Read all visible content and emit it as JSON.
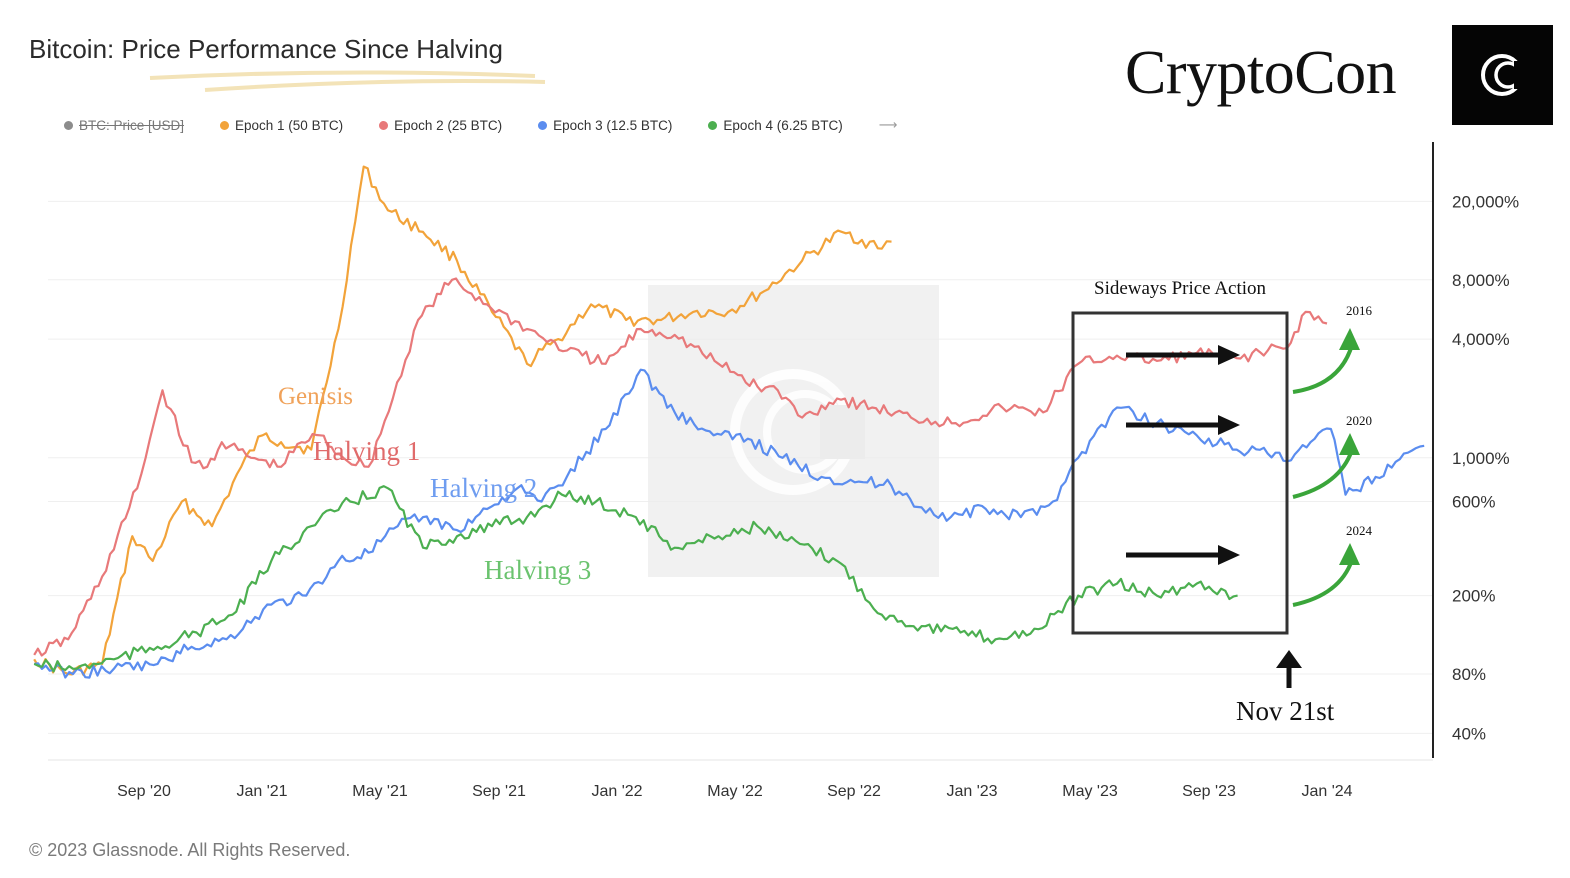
{
  "header": {
    "title": "Bitcoin: Price Performance Since Halving",
    "brand": "CryptoCon"
  },
  "footer": {
    "copyright": "© 2023 Glassnode. All Rights Reserved."
  },
  "legend": {
    "items": [
      {
        "label": "BTC: Price [USD]",
        "color": "#8c8c8c",
        "disabled": true
      },
      {
        "label": "Epoch 1 (50 BTC)",
        "color": "#f2a33a",
        "disabled": false
      },
      {
        "label": "Epoch 2 (25 BTC)",
        "color": "#e8797a",
        "disabled": false
      },
      {
        "label": "Epoch 3 (12.5 BTC)",
        "color": "#5b8def",
        "disabled": false
      },
      {
        "label": "Epoch 4 (6.25 BTC)",
        "color": "#4caf50",
        "disabled": false
      }
    ]
  },
  "chart_data": {
    "type": "line",
    "y_scale": "log",
    "ylim": [
      30,
      40000
    ],
    "x_ticks": [
      "Sep '20",
      "Jan '21",
      "May '21",
      "Sep '21",
      "Jan '22",
      "May '22",
      "Sep '22",
      "Jan '23",
      "May '23",
      "Sep '23",
      "Jan '24"
    ],
    "y_ticks": [
      {
        "label": "20,000%",
        "value": 20000
      },
      {
        "label": "8,000%",
        "value": 8000
      },
      {
        "label": "4,000%",
        "value": 4000
      },
      {
        "label": "1,000%",
        "value": 1000
      },
      {
        "label": "600%",
        "value": 600
      },
      {
        "label": "200%",
        "value": 200
      },
      {
        "label": "80%",
        "value": 80
      },
      {
        "label": "40%",
        "value": 40
      }
    ],
    "series": [
      {
        "name": "Epoch 1 (50 BTC)",
        "color": "#f2a33a",
        "x": [
          "2020-05-11",
          "2020-06-15",
          "2020-07-20",
          "2020-08-20",
          "2020-09-10",
          "2020-10-10",
          "2020-11-10",
          "2020-12-10",
          "2021-01-01",
          "2021-01-20",
          "2021-02-20",
          "2021-03-20",
          "2021-04-15",
          "2021-05-10",
          "2021-06-15",
          "2021-07-20",
          "2021-08-25",
          "2021-09-30",
          "2021-11-01",
          "2021-12-05",
          "2022-01-10",
          "2022-02-15",
          "2022-03-20",
          "2022-04-25",
          "2022-06-01",
          "2022-07-10",
          "2022-08-20",
          "2022-09-30",
          "2022-10-10"
        ],
        "y": [
          95,
          80,
          90,
          400,
          300,
          600,
          450,
          900,
          1300,
          1200,
          1100,
          4500,
          30000,
          18000,
          14000,
          10000,
          5500,
          3000,
          4000,
          6000,
          5000,
          5000,
          5500,
          5500,
          7000,
          10000,
          14000,
          11500,
          12500
        ]
      },
      {
        "name": "Epoch 2 (25 BTC)",
        "color": "#e8797a",
        "x": [
          "2020-05-11",
          "2020-06-15",
          "2020-07-20",
          "2020-08-25",
          "2020-09-20",
          "2020-10-20",
          "2020-11-05",
          "2020-11-20",
          "2020-12-20",
          "2021-01-20",
          "2021-02-10",
          "2021-03-01",
          "2021-03-25",
          "2021-04-20",
          "2021-05-15",
          "2021-06-10",
          "2021-07-15",
          "2021-08-20",
          "2021-09-30",
          "2021-11-10",
          "2021-12-20",
          "2022-01-25",
          "2022-03-01",
          "2022-04-15",
          "2022-05-25",
          "2022-06-15",
          "2022-07-10",
          "2022-08-15",
          "2022-09-20",
          "2022-10-30",
          "2022-12-15",
          "2023-02-01",
          "2023-03-15",
          "2023-04-20",
          "2023-05-30",
          "2023-07-10",
          "2023-08-20",
          "2023-09-30",
          "2023-11-01",
          "2023-11-21",
          "2023-12-10",
          "2024-01-01"
        ],
        "y": [
          100,
          120,
          250,
          700,
          2200,
          950,
          900,
          1200,
          1000,
          900,
          1200,
          1300,
          1000,
          900,
          2000,
          5000,
          8000,
          6000,
          4500,
          3500,
          3000,
          4500,
          4200,
          3000,
          2300,
          2200,
          1600,
          2000,
          1800,
          1600,
          1500,
          1800,
          1700,
          3000,
          3300,
          3100,
          3400,
          3200,
          3500,
          3600,
          5500,
          4800
        ]
      },
      {
        "name": "Epoch 3 (12.5 BTC)",
        "color": "#5b8def",
        "x": [
          "2020-05-11",
          "2020-06-20",
          "2020-08-01",
          "2020-09-15",
          "2020-10-20",
          "2020-11-25",
          "2021-01-10",
          "2021-02-15",
          "2021-03-20",
          "2021-04-20",
          "2021-05-20",
          "2021-06-15",
          "2021-07-20",
          "2021-08-20",
          "2021-09-20",
          "2021-10-15",
          "2021-11-10",
          "2021-12-20",
          "2022-01-25",
          "2022-03-01",
          "2022-04-10",
          "2022-05-15",
          "2022-06-20",
          "2022-07-30",
          "2022-09-15",
          "2022-10-10",
          "2022-11-10",
          "2022-12-10",
          "2023-01-15",
          "2023-02-20",
          "2023-03-25",
          "2023-04-20",
          "2023-05-30",
          "2023-07-10",
          "2023-08-20",
          "2023-09-30",
          "2023-11-01",
          "2023-11-21",
          "2023-12-15",
          "2024-01-05",
          "2024-01-20",
          "2024-02-20",
          "2024-03-20",
          "2024-04-10"
        ],
        "y": [
          90,
          80,
          85,
          90,
          110,
          120,
          180,
          200,
          300,
          330,
          450,
          500,
          430,
          550,
          700,
          600,
          800,
          1400,
          2800,
          1700,
          1300,
          1250,
          1000,
          800,
          750,
          720,
          560,
          500,
          550,
          500,
          600,
          1000,
          1800,
          1500,
          1300,
          1100,
          1050,
          960,
          1200,
          1400,
          650,
          800,
          1050,
          1150
        ]
      },
      {
        "name": "Epoch 4 (6.25 BTC)",
        "color": "#4caf50",
        "x": [
          "2020-05-11",
          "2020-06-20",
          "2020-08-01",
          "2020-09-15",
          "2020-10-25",
          "2020-12-01",
          "2021-01-10",
          "2021-02-20",
          "2021-04-01",
          "2021-05-10",
          "2021-06-15",
          "2021-07-20",
          "2021-08-25",
          "2021-09-30",
          "2021-11-05",
          "2021-12-10",
          "2022-01-20",
          "2022-03-01",
          "2022-04-15",
          "2022-05-25",
          "2022-06-25",
          "2022-08-15",
          "2022-09-30",
          "2022-11-10",
          "2022-12-20",
          "2023-01-25",
          "2023-03-10",
          "2023-04-20",
          "2023-05-30",
          "2023-07-10",
          "2023-08-20",
          "2023-10-01"
        ],
        "y": [
          90,
          85,
          95,
          110,
          130,
          160,
          300,
          450,
          600,
          700,
          350,
          400,
          450,
          500,
          650,
          600,
          500,
          350,
          400,
          450,
          380,
          300,
          160,
          140,
          130,
          120,
          135,
          200,
          230,
          200,
          230,
          200
        ]
      }
    ],
    "annotations": {
      "genesis": "Genisis",
      "halving1": "Halving 1",
      "halving2": "Halving 2",
      "halving3": "Halving 3",
      "sideways": "Sideways Price Action",
      "nov21": "Nov 21st",
      "y2016": "2016",
      "y2020": "2020",
      "y2024": "2024"
    }
  }
}
